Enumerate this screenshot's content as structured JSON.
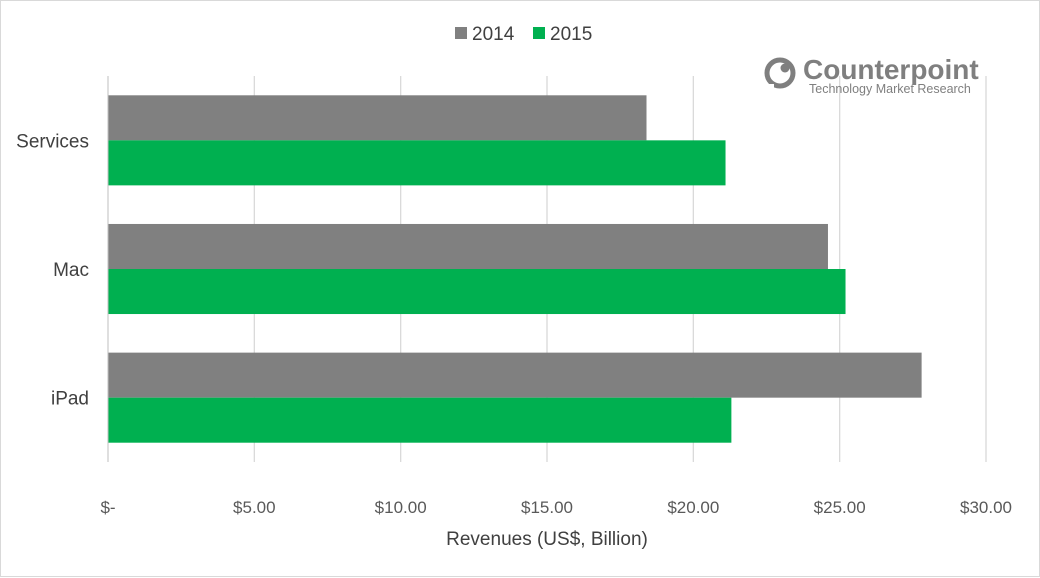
{
  "chart_data": {
    "type": "bar",
    "orientation": "horizontal",
    "categories": [
      "Services",
      "Mac",
      "iPad"
    ],
    "series": [
      {
        "name": "2014",
        "color": "#808080",
        "values": [
          18.4,
          24.6,
          27.8
        ]
      },
      {
        "name": "2015",
        "color": "#00b050",
        "values": [
          21.1,
          25.2,
          21.3
        ]
      }
    ],
    "xlabel": "Revenues (US$, Billion)",
    "ylabel": "",
    "xlim": [
      0,
      30
    ],
    "x_ticks": [
      0,
      5,
      10,
      15,
      20,
      25,
      30
    ],
    "x_tick_labels": [
      "$-",
      "$5.00",
      "$10.00",
      "$15.00",
      "$20.00",
      "$25.00",
      "$30.00"
    ],
    "grid": "vertical",
    "legend_position": "top-center"
  },
  "logo": {
    "name": "Counterpoint",
    "tagline": "Technology Market Research"
  }
}
